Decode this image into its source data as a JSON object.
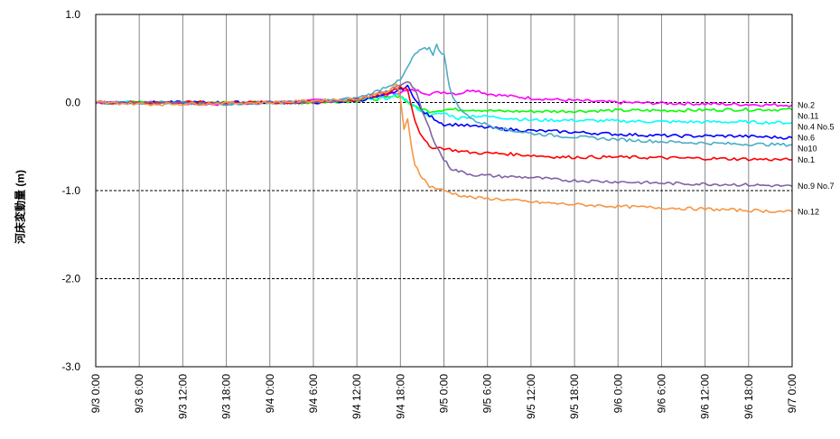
{
  "chart_data": {
    "type": "line",
    "ylabel": "河床変動量 (m)",
    "xlabel": "",
    "title": "",
    "ylim": [
      -3.0,
      1.0
    ],
    "y_ticks": [
      "1.0",
      "0.0",
      "-1.0",
      "-2.0",
      "-3.0"
    ],
    "y_tick_values": [
      1.0,
      0.0,
      -1.0,
      -2.0,
      -3.0
    ],
    "x_range_hours": [
      0,
      96
    ],
    "x_ticks": [
      "9/3 0:00",
      "9/3 6:00",
      "9/3 12:00",
      "9/3 18:00",
      "9/4 0:00",
      "9/4 6:00",
      "9/4 12:00",
      "9/4 18:00",
      "9/5 0:00",
      "9/5 6:00",
      "9/5 12:00",
      "9/5 18:00",
      "9/6 0:00",
      "9/6 6:00",
      "9/6 12:00",
      "9/6 18:00",
      "9/7 0:00"
    ],
    "gridlines": {
      "vertical": "solid",
      "horizontal": "dashed"
    },
    "legend_placement": "right (labels at line ends)",
    "series": [
      {
        "name": "No.2",
        "color": "#ff00ff",
        "points": [
          [
            0,
            0
          ],
          [
            4,
            0
          ],
          [
            8,
            0
          ],
          [
            16,
            -0.02
          ],
          [
            24,
            0
          ],
          [
            30,
            0.02
          ],
          [
            36,
            0.04
          ],
          [
            40,
            0.08
          ],
          [
            42,
            0.12
          ],
          [
            44,
            0.14
          ],
          [
            46,
            0.1
          ],
          [
            48,
            0.12
          ],
          [
            50,
            0.1
          ],
          [
            52,
            0.15
          ],
          [
            54,
            0.1
          ],
          [
            56,
            0.08
          ],
          [
            60,
            0.05
          ],
          [
            64,
            0.03
          ],
          [
            72,
            0.0
          ],
          [
            80,
            -0.01
          ],
          [
            88,
            -0.02
          ],
          [
            96,
            -0.03
          ]
        ]
      },
      {
        "name": "No.11",
        "color": "#00ff00",
        "points": [
          [
            0,
            0
          ],
          [
            8,
            0
          ],
          [
            16,
            0
          ],
          [
            24,
            0
          ],
          [
            30,
            0
          ],
          [
            36,
            0.02
          ],
          [
            40,
            0.05
          ],
          [
            42,
            0.08
          ],
          [
            43,
            0.0
          ],
          [
            44,
            -0.05
          ],
          [
            46,
            -0.1
          ],
          [
            48,
            -0.08
          ],
          [
            52,
            -0.08
          ],
          [
            56,
            -0.1
          ],
          [
            64,
            -0.1
          ],
          [
            72,
            -0.09
          ],
          [
            80,
            -0.09
          ],
          [
            88,
            -0.08
          ],
          [
            96,
            -0.08
          ]
        ]
      },
      {
        "name": "No.4 No.5",
        "color": "#00ffff",
        "points": [
          [
            0,
            0
          ],
          [
            8,
            0
          ],
          [
            16,
            -0.01
          ],
          [
            24,
            0
          ],
          [
            30,
            0.01
          ],
          [
            36,
            0.03
          ],
          [
            40,
            0.05
          ],
          [
            42,
            0.08
          ],
          [
            44,
            -0.05
          ],
          [
            46,
            -0.15
          ],
          [
            48,
            -0.12
          ],
          [
            50,
            -0.18
          ],
          [
            52,
            -0.15
          ],
          [
            56,
            -0.17
          ],
          [
            60,
            -0.2
          ],
          [
            64,
            -0.2
          ],
          [
            72,
            -0.21
          ],
          [
            80,
            -0.22
          ],
          [
            88,
            -0.22
          ],
          [
            96,
            -0.23
          ]
        ]
      },
      {
        "name": "No.6",
        "color": "#0000ff",
        "points": [
          [
            0,
            0
          ],
          [
            8,
            0
          ],
          [
            16,
            0
          ],
          [
            24,
            0
          ],
          [
            30,
            0
          ],
          [
            36,
            0.02
          ],
          [
            40,
            0.08
          ],
          [
            42,
            0.15
          ],
          [
            43,
            0.18
          ],
          [
            44,
            0.05
          ],
          [
            45,
            -0.1
          ],
          [
            46,
            -0.15
          ],
          [
            47,
            -0.2
          ],
          [
            48,
            -0.25
          ],
          [
            50,
            -0.25
          ],
          [
            52,
            -0.27
          ],
          [
            56,
            -0.3
          ],
          [
            60,
            -0.32
          ],
          [
            64,
            -0.33
          ],
          [
            72,
            -0.36
          ],
          [
            80,
            -0.38
          ],
          [
            88,
            -0.38
          ],
          [
            96,
            -0.4
          ]
        ]
      },
      {
        "name": "No10",
        "color": "#4bacc6",
        "points": [
          [
            0,
            0
          ],
          [
            8,
            0
          ],
          [
            16,
            -0.02
          ],
          [
            24,
            0
          ],
          [
            30,
            0.01
          ],
          [
            36,
            0.05
          ],
          [
            38,
            0.1
          ],
          [
            40,
            0.18
          ],
          [
            42,
            0.25
          ],
          [
            43,
            0.4
          ],
          [
            44,
            0.55
          ],
          [
            45,
            0.6
          ],
          [
            46,
            0.62
          ],
          [
            46.5,
            0.55
          ],
          [
            47,
            0.65
          ],
          [
            47.5,
            0.58
          ],
          [
            48,
            0.55
          ],
          [
            48.5,
            0.3
          ],
          [
            49,
            0.1
          ],
          [
            50,
            -0.05
          ],
          [
            52,
            -0.2
          ],
          [
            56,
            -0.3
          ],
          [
            60,
            -0.35
          ],
          [
            64,
            -0.38
          ],
          [
            72,
            -0.42
          ],
          [
            80,
            -0.45
          ],
          [
            88,
            -0.47
          ],
          [
            96,
            -0.48
          ]
        ]
      },
      {
        "name": "No.1",
        "color": "#ff0000",
        "points": [
          [
            0,
            0
          ],
          [
            8,
            0
          ],
          [
            16,
            0
          ],
          [
            24,
            0
          ],
          [
            30,
            0
          ],
          [
            36,
            0.03
          ],
          [
            40,
            0.1
          ],
          [
            42,
            0.18
          ],
          [
            43,
            0.15
          ],
          [
            44,
            -0.2
          ],
          [
            45,
            -0.4
          ],
          [
            46,
            -0.5
          ],
          [
            48,
            -0.52
          ],
          [
            50,
            -0.55
          ],
          [
            52,
            -0.57
          ],
          [
            56,
            -0.58
          ],
          [
            60,
            -0.6
          ],
          [
            64,
            -0.62
          ],
          [
            72,
            -0.62
          ],
          [
            80,
            -0.63
          ],
          [
            88,
            -0.64
          ],
          [
            96,
            -0.65
          ]
        ]
      },
      {
        "name": "No.9 No.7",
        "color": "#8064a2",
        "points": [
          [
            0,
            0
          ],
          [
            8,
            0
          ],
          [
            16,
            -0.01
          ],
          [
            24,
            0
          ],
          [
            30,
            0
          ],
          [
            36,
            0.04
          ],
          [
            40,
            0.12
          ],
          [
            42,
            0.2
          ],
          [
            43,
            0.25
          ],
          [
            44,
            0.15
          ],
          [
            45,
            -0.1
          ],
          [
            46,
            -0.3
          ],
          [
            47,
            -0.5
          ],
          [
            48,
            -0.65
          ],
          [
            49,
            -0.75
          ],
          [
            50,
            -0.78
          ],
          [
            52,
            -0.82
          ],
          [
            56,
            -0.84
          ],
          [
            60,
            -0.85
          ],
          [
            64,
            -0.88
          ],
          [
            72,
            -0.9
          ],
          [
            80,
            -0.92
          ],
          [
            88,
            -0.93
          ],
          [
            96,
            -0.95
          ]
        ]
      },
      {
        "name": "No.12",
        "color": "#f79646",
        "points": [
          [
            0,
            0
          ],
          [
            8,
            -0.02
          ],
          [
            16,
            -0.01
          ],
          [
            24,
            0
          ],
          [
            30,
            0.02
          ],
          [
            36,
            0.04
          ],
          [
            38,
            0.08
          ],
          [
            40,
            0.12
          ],
          [
            41.5,
            0.2
          ],
          [
            42,
            0.05
          ],
          [
            42.5,
            -0.3
          ],
          [
            43,
            -0.2
          ],
          [
            43.5,
            -0.5
          ],
          [
            44,
            -0.7
          ],
          [
            45,
            -0.85
          ],
          [
            46,
            -0.95
          ],
          [
            48,
            -1.0
          ],
          [
            50,
            -1.05
          ],
          [
            52,
            -1.08
          ],
          [
            56,
            -1.1
          ],
          [
            60,
            -1.13
          ],
          [
            64,
            -1.15
          ],
          [
            72,
            -1.18
          ],
          [
            80,
            -1.2
          ],
          [
            88,
            -1.22
          ],
          [
            96,
            -1.24
          ]
        ]
      }
    ]
  }
}
